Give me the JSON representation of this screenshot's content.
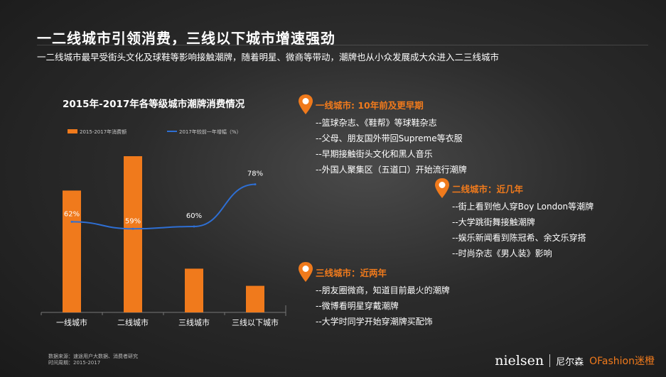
{
  "title": "一二线城市引领消费，三线以下城市增速强劲",
  "subtitle": "一二线城市最早受街头文化及球鞋等影响接触潮牌，随着明星、微商等带动，潮牌也从小众发展成大众进入二三线城市",
  "source": {
    "line1": "数据来源：速途用户大数据、消费者研究",
    "line2": "时间周期：2015-2017"
  },
  "sections": [
    {
      "title": "一线城市: 10年前及更早期",
      "bullets": [
        "--篮球杂志、《鞋帮》等球鞋杂志",
        "--父母、朋友国外带回Supreme等衣服",
        "--早期接触街头文化和黑人音乐",
        "--外国人聚集区（五道口）开始流行潮牌"
      ]
    },
    {
      "title": "二线城市：近几年",
      "bullets": [
        "--街上看到他人穿Boy London等潮牌",
        "--大学跳街舞接触潮牌",
        "--娱乐新闻看到陈冠希、余文乐穿搭",
        "--时尚杂志《男人装》影响"
      ]
    },
    {
      "title": "三线城市：近两年",
      "bullets": [
        "--朋友圈微商，知道目前最火的潮牌",
        "--微博看明星穿戴潮牌",
        "--大学时同学开始穿潮牌买配饰"
      ]
    }
  ],
  "logos": {
    "nielsen": "nielsen",
    "nielsen_cn": "尼尔森",
    "ofashion": "OFashion迷橙"
  },
  "colors": {
    "bar": "#f07a1c",
    "line": "#2e6fd4",
    "accent": "#f07a1c"
  },
  "chart_data": {
    "type": "bar",
    "title": "2015年-2017年各等级城市潮牌消费情况",
    "categories": [
      "一线城市",
      "二线城市",
      "三线城市",
      "三线以下城市"
    ],
    "series": [
      {
        "name": "2015-2017年消费额",
        "type": "bar",
        "values": [
          0.78,
          1.0,
          0.28,
          0.17
        ]
      },
      {
        "name": "2017年较前一年增幅（%）",
        "type": "line",
        "values": [
          62,
          59,
          60,
          78
        ],
        "labels": [
          "62%",
          "59%",
          "60%",
          "78%"
        ]
      }
    ],
    "legend_position": "top-left",
    "grid": false
  }
}
